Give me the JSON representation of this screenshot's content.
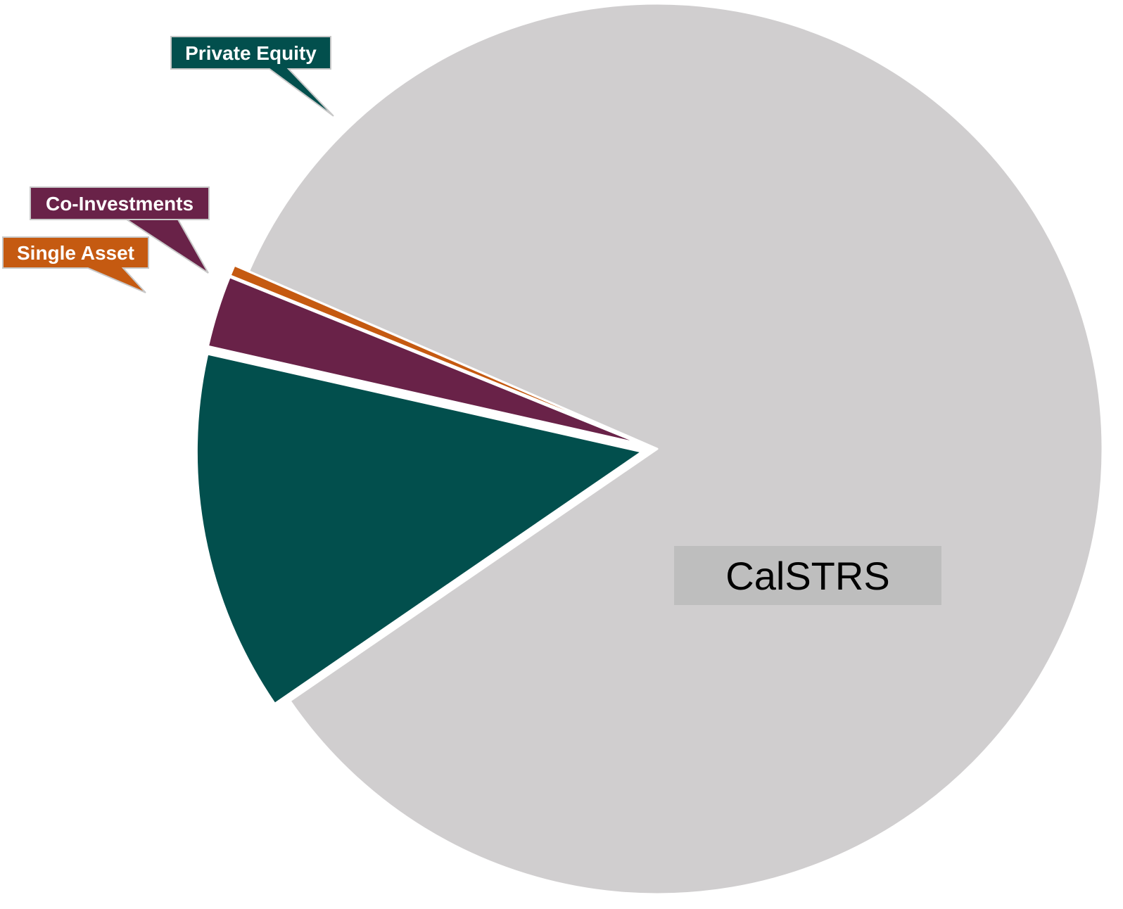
{
  "chart_data": {
    "type": "pie",
    "title": "",
    "slices": [
      {
        "name": "CalSTRS",
        "value": 83.9,
        "color": "#D0CECF"
      },
      {
        "name": "Private Equity",
        "value": 13.1,
        "color": "#024F4D"
      },
      {
        "name": "Co-Investments",
        "value": 2.6,
        "color": "#692248"
      },
      {
        "name": "Single Asset",
        "value": 0.4,
        "color": "#C55A11"
      }
    ],
    "label_box_colors": {
      "CalSTRS": "#BEBEBE",
      "Private Equity": "#024F4D",
      "Co-Investments": "#692248",
      "Single Asset": "#C55A11"
    },
    "legend": "none",
    "labels_style": "callouts"
  }
}
